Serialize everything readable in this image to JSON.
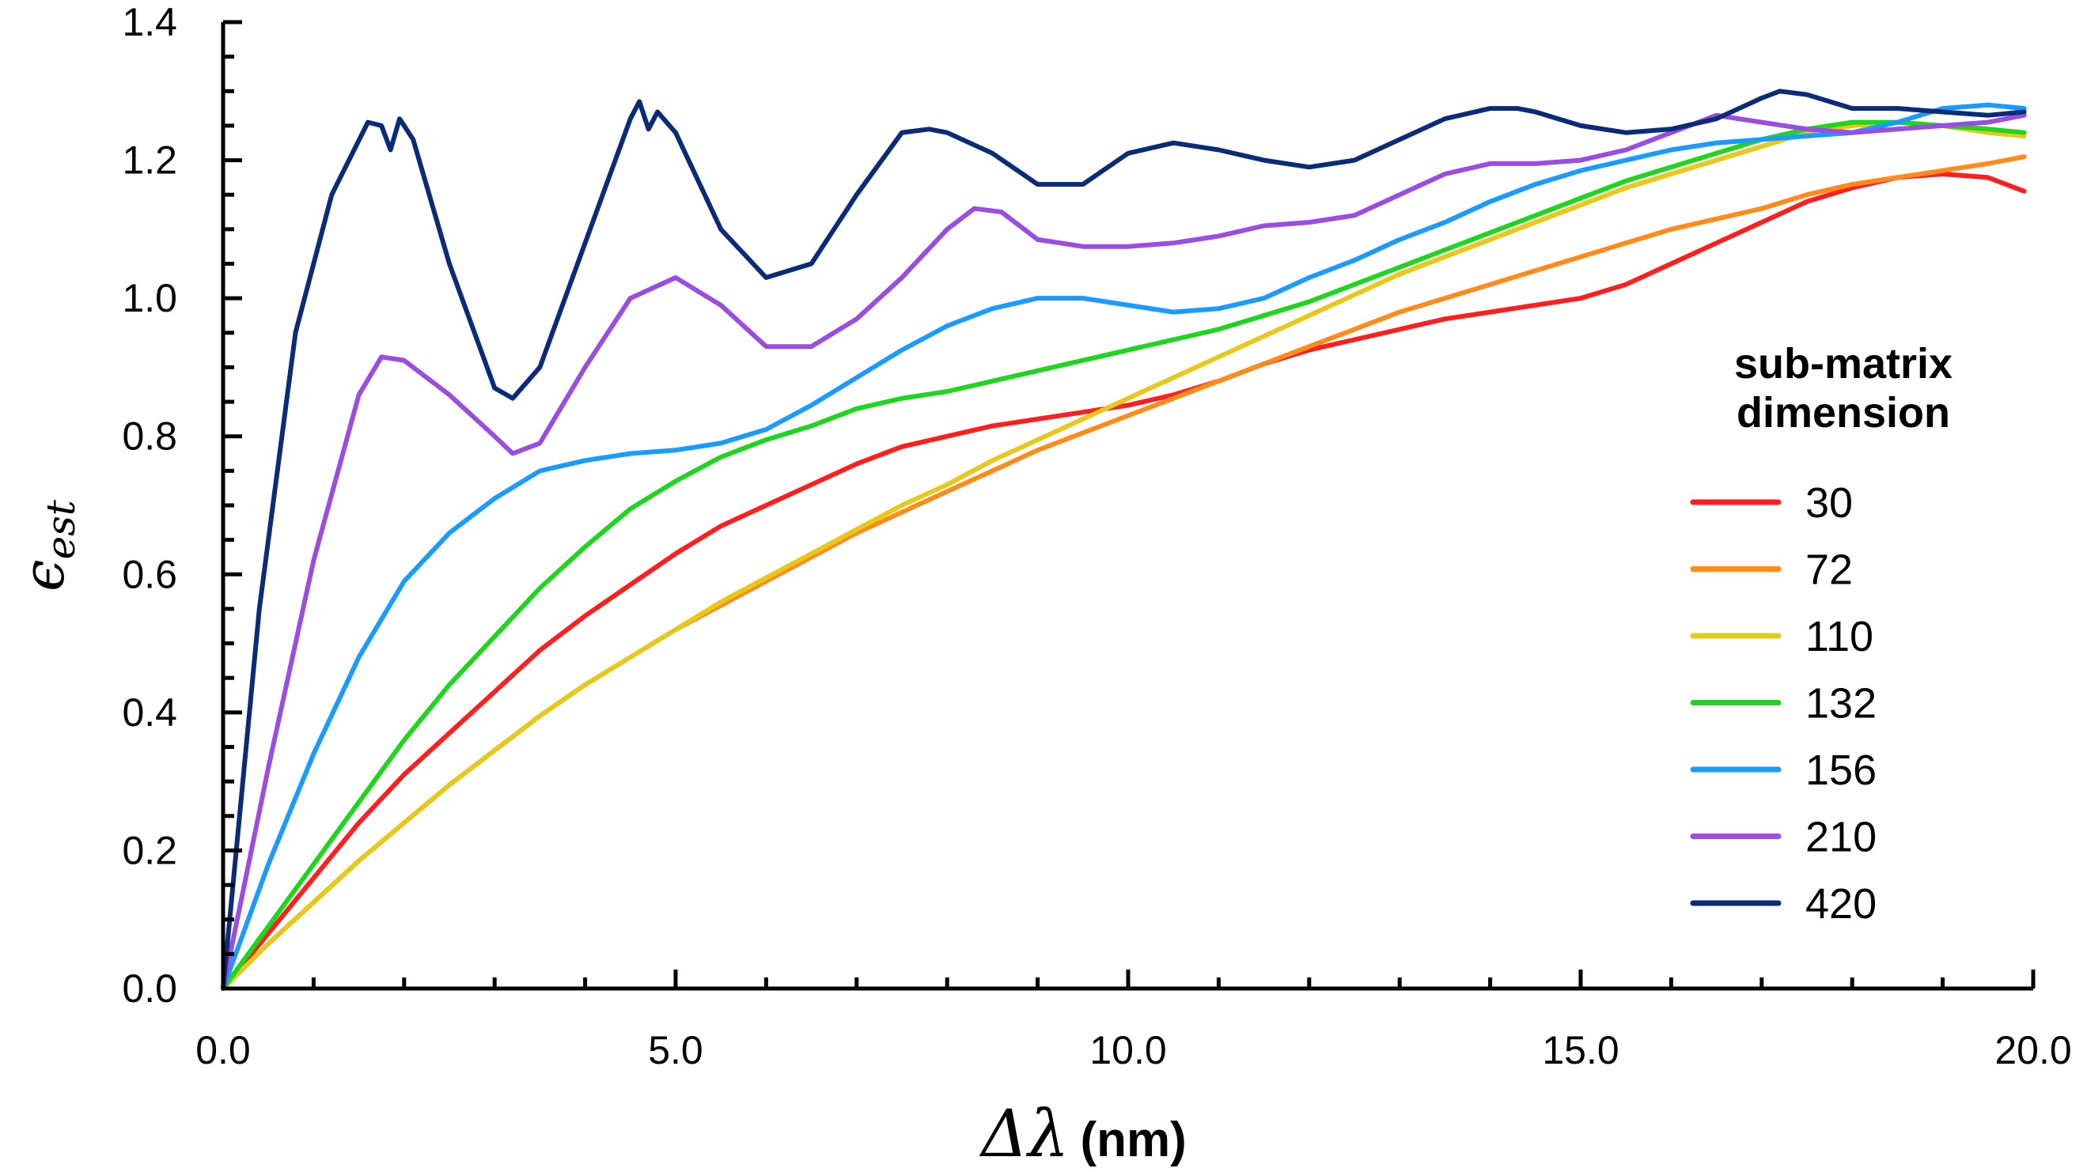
{
  "chart_data": {
    "type": "line",
    "title": "",
    "xlabel": {
      "symbol": "Δλ",
      "unit": "(nm)"
    },
    "ylabel": {
      "symbol": "ϵ",
      "subscript": "est"
    },
    "xlim": [
      0,
      20
    ],
    "ylim": [
      0,
      1.4
    ],
    "x_major_ticks": [
      0,
      5,
      10,
      15,
      20
    ],
    "x_tick_labels": [
      "0.0",
      "5.0",
      "10.0",
      "15.0",
      "20.0"
    ],
    "x_minor_step": 1,
    "y_major_ticks": [
      0,
      0.2,
      0.4,
      0.6,
      0.8,
      1.0,
      1.2,
      1.4
    ],
    "y_tick_labels": [
      "0.0",
      "0.2",
      "0.4",
      "0.6",
      "0.8",
      "1.0",
      "1.2",
      "1.4"
    ],
    "y_minor_step": 0.05,
    "grid": false,
    "legend": {
      "title_line1": "sub-matrix",
      "title_line2": "dimension",
      "position": "right"
    },
    "series": [
      {
        "name": "30",
        "color": "#ff1f1f",
        "x": [
          0,
          0.5,
          1,
          1.5,
          2,
          2.5,
          3,
          3.5,
          4,
          4.5,
          5,
          5.5,
          6,
          6.5,
          7,
          7.5,
          8,
          8.5,
          9,
          9.5,
          10,
          10.5,
          11,
          11.5,
          12,
          12.5,
          13,
          13.5,
          14,
          14.5,
          15,
          15.5,
          16,
          16.5,
          17,
          17.5,
          18,
          18.5,
          19,
          19.5,
          19.9
        ],
        "y": [
          0,
          0.08,
          0.16,
          0.24,
          0.31,
          0.37,
          0.43,
          0.49,
          0.54,
          0.585,
          0.63,
          0.67,
          0.7,
          0.73,
          0.76,
          0.785,
          0.8,
          0.815,
          0.825,
          0.835,
          0.845,
          0.86,
          0.88,
          0.905,
          0.925,
          0.94,
          0.955,
          0.97,
          0.98,
          0.99,
          1.0,
          1.02,
          1.05,
          1.08,
          1.11,
          1.14,
          1.16,
          1.175,
          1.18,
          1.175,
          1.155
        ]
      },
      {
        "name": "72",
        "color": "#ff8c1a",
        "x": [
          0,
          0.5,
          1,
          1.5,
          2,
          2.5,
          3,
          3.5,
          4,
          4.5,
          5,
          5.5,
          6,
          6.5,
          7,
          7.5,
          8,
          8.5,
          9,
          9.5,
          10,
          10.5,
          11,
          11.5,
          12,
          12.5,
          13,
          13.5,
          14,
          14.5,
          15,
          15.5,
          16,
          16.5,
          17,
          17.5,
          18,
          18.5,
          19,
          19.5,
          19.9
        ],
        "y": [
          0,
          0.065,
          0.125,
          0.185,
          0.24,
          0.295,
          0.345,
          0.395,
          0.44,
          0.48,
          0.52,
          0.555,
          0.59,
          0.625,
          0.66,
          0.69,
          0.72,
          0.75,
          0.78,
          0.805,
          0.83,
          0.855,
          0.88,
          0.905,
          0.93,
          0.955,
          0.98,
          1.0,
          1.02,
          1.04,
          1.06,
          1.08,
          1.1,
          1.115,
          1.13,
          1.15,
          1.165,
          1.175,
          1.185,
          1.195,
          1.205
        ]
      },
      {
        "name": "110",
        "color": "#e8c81a",
        "x": [
          0,
          0.5,
          1,
          1.5,
          2,
          2.5,
          3,
          3.5,
          4,
          4.5,
          5,
          5.5,
          6,
          6.5,
          7,
          7.5,
          8,
          8.5,
          9,
          9.5,
          10,
          10.5,
          11,
          11.5,
          12,
          12.5,
          13,
          13.5,
          14,
          14.5,
          15,
          15.5,
          16,
          16.5,
          17,
          17.5,
          18,
          18.5,
          19,
          19.5,
          19.9
        ],
        "y": [
          0,
          0.065,
          0.125,
          0.185,
          0.24,
          0.295,
          0.345,
          0.395,
          0.44,
          0.48,
          0.52,
          0.56,
          0.595,
          0.63,
          0.665,
          0.7,
          0.73,
          0.765,
          0.795,
          0.825,
          0.855,
          0.885,
          0.915,
          0.945,
          0.975,
          1.005,
          1.035,
          1.06,
          1.085,
          1.11,
          1.135,
          1.16,
          1.18,
          1.2,
          1.22,
          1.24,
          1.25,
          1.255,
          1.25,
          1.24,
          1.235
        ]
      },
      {
        "name": "132",
        "color": "#1ed61e",
        "x": [
          0,
          0.5,
          1,
          1.5,
          2,
          2.5,
          3,
          3.5,
          4,
          4.5,
          5,
          5.5,
          6,
          6.5,
          7,
          7.5,
          8,
          8.5,
          9,
          9.5,
          10,
          10.5,
          11,
          11.5,
          12,
          12.5,
          13,
          13.5,
          14,
          14.5,
          15,
          15.5,
          16,
          16.5,
          17,
          17.5,
          18,
          18.5,
          19,
          19.5,
          19.9
        ],
        "y": [
          0,
          0.09,
          0.18,
          0.27,
          0.36,
          0.44,
          0.51,
          0.58,
          0.64,
          0.695,
          0.735,
          0.77,
          0.795,
          0.815,
          0.84,
          0.855,
          0.865,
          0.88,
          0.895,
          0.91,
          0.925,
          0.94,
          0.955,
          0.975,
          0.995,
          1.02,
          1.045,
          1.07,
          1.095,
          1.12,
          1.145,
          1.17,
          1.19,
          1.21,
          1.23,
          1.245,
          1.255,
          1.255,
          1.25,
          1.245,
          1.24
        ]
      },
      {
        "name": "156",
        "color": "#1a9bff",
        "x": [
          0,
          0.5,
          1,
          1.5,
          2,
          2.5,
          3,
          3.5,
          4,
          4.5,
          5,
          5.5,
          6,
          6.5,
          7,
          7.5,
          8,
          8.5,
          9,
          9.5,
          10,
          10.5,
          11,
          11.5,
          12,
          12.5,
          13,
          13.5,
          14,
          14.5,
          15,
          15.5,
          16,
          16.5,
          17,
          17.5,
          18,
          18.5,
          19,
          19.5,
          19.9
        ],
        "y": [
          0,
          0.18,
          0.34,
          0.48,
          0.59,
          0.66,
          0.71,
          0.75,
          0.765,
          0.775,
          0.78,
          0.79,
          0.81,
          0.845,
          0.885,
          0.925,
          0.96,
          0.985,
          1.0,
          1.0,
          0.99,
          0.98,
          0.985,
          1.0,
          1.03,
          1.055,
          1.085,
          1.11,
          1.14,
          1.165,
          1.185,
          1.2,
          1.215,
          1.225,
          1.23,
          1.235,
          1.24,
          1.255,
          1.275,
          1.28,
          1.275
        ]
      },
      {
        "name": "210",
        "color": "#9a4de0",
        "x": [
          0,
          0.5,
          1,
          1.5,
          1.75,
          2,
          2.5,
          3,
          3.2,
          3.5,
          4,
          4.5,
          5,
          5.5,
          6,
          6.5,
          7,
          7.5,
          8,
          8.3,
          8.6,
          9,
          9.5,
          10,
          10.5,
          11,
          11.5,
          12,
          12.5,
          13,
          13.5,
          14,
          14.5,
          15,
          15.5,
          16,
          16.5,
          17,
          17.5,
          18,
          18.5,
          19,
          19.5,
          19.9
        ],
        "y": [
          0,
          0.32,
          0.62,
          0.86,
          0.915,
          0.91,
          0.86,
          0.8,
          0.775,
          0.79,
          0.9,
          1.0,
          1.03,
          0.99,
          0.93,
          0.93,
          0.97,
          1.03,
          1.1,
          1.13,
          1.125,
          1.085,
          1.075,
          1.075,
          1.08,
          1.09,
          1.105,
          1.11,
          1.12,
          1.15,
          1.18,
          1.195,
          1.195,
          1.2,
          1.215,
          1.24,
          1.265,
          1.255,
          1.245,
          1.24,
          1.245,
          1.25,
          1.255,
          1.265
        ]
      },
      {
        "name": "420",
        "color": "#0a2c78",
        "x": [
          0,
          0.4,
          0.8,
          1.2,
          1.6,
          1.75,
          1.85,
          1.95,
          2.1,
          2.5,
          3,
          3.2,
          3.5,
          4,
          4.5,
          4.6,
          4.7,
          4.8,
          5,
          5.5,
          6,
          6.5,
          7,
          7.5,
          7.8,
          8,
          8.5,
          9,
          9.5,
          10,
          10.5,
          11,
          11.5,
          12,
          12.5,
          13,
          13.5,
          14,
          14.3,
          14.5,
          15,
          15.5,
          16,
          16.5,
          17,
          17.2,
          17.5,
          18,
          18.5,
          19,
          19.5,
          19.9
        ],
        "y": [
          0,
          0.55,
          0.95,
          1.15,
          1.255,
          1.25,
          1.215,
          1.26,
          1.23,
          1.05,
          0.87,
          0.855,
          0.9,
          1.08,
          1.26,
          1.285,
          1.245,
          1.27,
          1.24,
          1.1,
          1.03,
          1.05,
          1.15,
          1.24,
          1.245,
          1.24,
          1.21,
          1.165,
          1.165,
          1.21,
          1.225,
          1.215,
          1.2,
          1.19,
          1.2,
          1.23,
          1.26,
          1.275,
          1.275,
          1.27,
          1.25,
          1.24,
          1.245,
          1.26,
          1.29,
          1.3,
          1.295,
          1.275,
          1.275,
          1.27,
          1.265,
          1.27
        ]
      }
    ]
  }
}
